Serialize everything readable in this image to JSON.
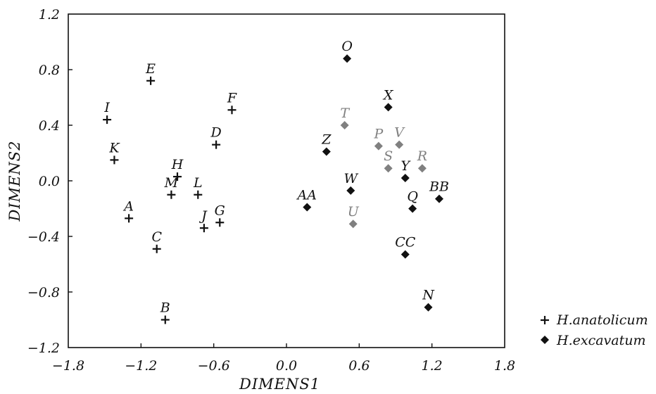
{
  "chart_data": {
    "type": "scatter",
    "xlabel": "DIMENS1",
    "ylabel": "DIMENS2",
    "xlim": [
      -1.8,
      1.8
    ],
    "ylim": [
      -1.2,
      1.2
    ],
    "x_ticks": [
      "-1.8",
      "-1.2",
      "-0.6",
      "0.0",
      "0.6",
      "1.2",
      "1.8"
    ],
    "y_ticks": [
      "1.2",
      "0.8",
      "0.4",
      "0.0",
      "-0.4",
      "-0.8",
      "-1.2"
    ],
    "grid": false,
    "legend_position": "bottom-right",
    "colors": {
      "ink": "#111111",
      "gray": "#808080"
    },
    "series": [
      {
        "name": "H.anatolicum",
        "marker": "plus",
        "points": [
          {
            "label": "E",
            "x": -1.12,
            "y": 0.72
          },
          {
            "label": "F",
            "x": -0.45,
            "y": 0.51
          },
          {
            "label": "I",
            "x": -1.48,
            "y": 0.44
          },
          {
            "label": "D",
            "x": -0.58,
            "y": 0.26
          },
          {
            "label": "K",
            "x": -1.42,
            "y": 0.15
          },
          {
            "label": "H",
            "x": -0.9,
            "y": 0.03
          },
          {
            "label": "M",
            "x": -0.95,
            "y": -0.1
          },
          {
            "label": "L",
            "x": -0.73,
            "y": -0.1
          },
          {
            "label": "A",
            "x": -1.3,
            "y": -0.27
          },
          {
            "label": "G",
            "x": -0.55,
            "y": -0.3
          },
          {
            "label": "J",
            "x": -0.68,
            "y": -0.34
          },
          {
            "label": "C",
            "x": -1.07,
            "y": -0.49
          },
          {
            "label": "B",
            "x": -1.0,
            "y": -1.0
          }
        ]
      },
      {
        "name": "H.excavatum",
        "marker": "diamond",
        "points": [
          {
            "label": "O",
            "x": 0.5,
            "y": 0.88,
            "shade": "black"
          },
          {
            "label": "X",
            "x": 0.84,
            "y": 0.53,
            "shade": "black"
          },
          {
            "label": "T",
            "x": 0.48,
            "y": 0.4,
            "shade": "gray"
          },
          {
            "label": "P",
            "x": 0.76,
            "y": 0.25,
            "shade": "gray"
          },
          {
            "label": "V",
            "x": 0.93,
            "y": 0.26,
            "shade": "gray"
          },
          {
            "label": "Z",
            "x": 0.33,
            "y": 0.21,
            "shade": "black"
          },
          {
            "label": "S",
            "x": 0.84,
            "y": 0.09,
            "shade": "gray"
          },
          {
            "label": "R",
            "x": 1.12,
            "y": 0.09,
            "shade": "gray"
          },
          {
            "label": "Y",
            "x": 0.98,
            "y": 0.02,
            "shade": "black"
          },
          {
            "label": "W",
            "x": 0.53,
            "y": -0.07,
            "shade": "black"
          },
          {
            "label": "BB",
            "x": 1.26,
            "y": -0.13,
            "shade": "black"
          },
          {
            "label": "AA",
            "x": 0.17,
            "y": -0.19,
            "shade": "black"
          },
          {
            "label": "Q",
            "x": 1.04,
            "y": -0.2,
            "shade": "black"
          },
          {
            "label": "U",
            "x": 0.55,
            "y": -0.31,
            "shade": "gray"
          },
          {
            "label": "CC",
            "x": 0.98,
            "y": -0.53,
            "shade": "black"
          },
          {
            "label": "N",
            "x": 1.17,
            "y": -0.91,
            "shade": "black"
          }
        ]
      }
    ]
  }
}
